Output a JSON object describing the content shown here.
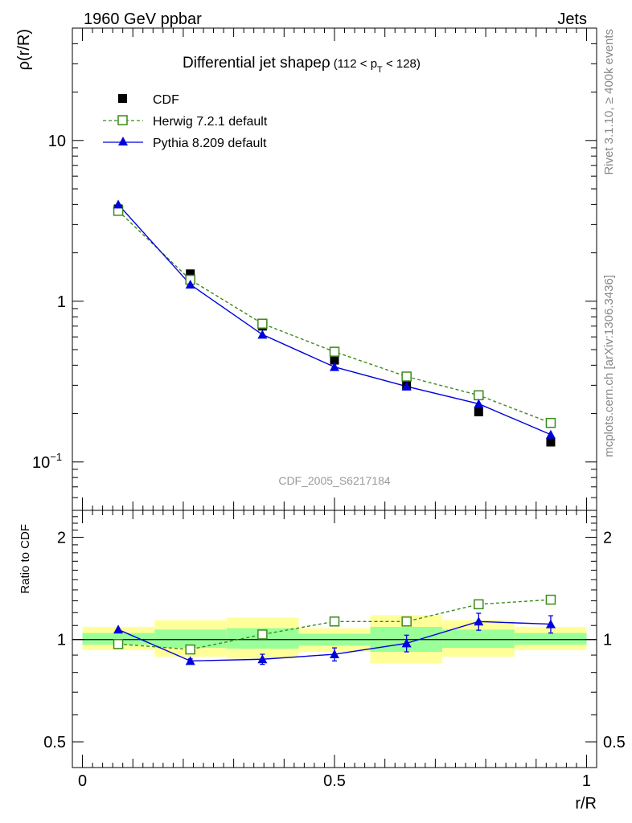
{
  "header": {
    "left": "1960 GeV ppbar",
    "right": "Jets"
  },
  "side_labels": {
    "rivet": "Rivet 3.1.10, ≥ 400k events",
    "mcplots": "mcplots.cern.ch [arXiv:1306.3436]"
  },
  "colors": {
    "cdf": "#000000",
    "herwig": "#3a8a1a",
    "pythia": "#0000dd",
    "band_outer": "#ffff99",
    "band_inner": "#99ff99"
  },
  "chart_data": {
    "type": "line",
    "title": "Differential jet shapeρ",
    "title_suffix": "(112 < p",
    "title_sub": "T",
    "title_end": " < 128)",
    "watermark": "CDF_2005_S6217184",
    "main": {
      "ylabel": "ρ(r/R)",
      "yscale": "log",
      "ylim": [
        0.05,
        50
      ],
      "yticks": [
        {
          "value": 10,
          "label": "10"
        },
        {
          "value": 1,
          "label": "1"
        },
        {
          "value": 0.1,
          "label": "10",
          "sup": "−1"
        }
      ],
      "series": [
        {
          "name": "CDF",
          "marker": "square-filled",
          "x": [
            0.071,
            0.214,
            0.357,
            0.5,
            0.643,
            0.786,
            0.929
          ],
          "y": [
            3.75,
            1.48,
            0.7,
            0.43,
            0.3,
            0.205,
            0.133
          ]
        },
        {
          "name": "Herwig 7.2.1 default",
          "marker": "square-open",
          "x": [
            0.071,
            0.214,
            0.357,
            0.5,
            0.643,
            0.786,
            0.929
          ],
          "y": [
            3.65,
            1.36,
            0.725,
            0.485,
            0.34,
            0.26,
            0.175
          ]
        },
        {
          "name": "Pythia 8.209 default",
          "marker": "triangle",
          "x": [
            0.071,
            0.214,
            0.357,
            0.5,
            0.643,
            0.786,
            0.929
          ],
          "y": [
            4.0,
            1.27,
            0.62,
            0.39,
            0.295,
            0.23,
            0.148
          ]
        }
      ]
    },
    "ratio": {
      "ylabel": "Ratio to CDF",
      "yscale": "log",
      "ylim": [
        0.42,
        2.4
      ],
      "yticks": [
        {
          "value": 2,
          "label": "2"
        },
        {
          "value": 1,
          "label": "1"
        },
        {
          "value": 0.5,
          "label": "0.5"
        }
      ],
      "xlabel": "r/R",
      "xlim": [
        -0.02,
        1.02
      ],
      "xticks": [
        {
          "value": 0,
          "label": "0"
        },
        {
          "value": 0.5,
          "label": "0.5"
        },
        {
          "value": 1,
          "label": "1"
        }
      ],
      "bands": [
        {
          "x0": 0.0,
          "x1": 0.143,
          "outer": [
            0.93,
            1.09
          ],
          "inner": [
            0.965,
            1.045
          ]
        },
        {
          "x0": 0.143,
          "x1": 0.286,
          "outer": [
            0.89,
            1.14
          ],
          "inner": [
            0.945,
            1.07
          ]
        },
        {
          "x0": 0.286,
          "x1": 0.429,
          "outer": [
            0.88,
            1.16
          ],
          "inner": [
            0.94,
            1.08
          ]
        },
        {
          "x0": 0.429,
          "x1": 0.571,
          "outer": [
            0.92,
            1.08
          ],
          "inner": [
            0.96,
            1.04
          ]
        },
        {
          "x0": 0.571,
          "x1": 0.714,
          "outer": [
            0.85,
            1.18
          ],
          "inner": [
            0.92,
            1.09
          ]
        },
        {
          "x0": 0.714,
          "x1": 0.857,
          "outer": [
            0.89,
            1.14
          ],
          "inner": [
            0.945,
            1.07
          ]
        },
        {
          "x0": 0.857,
          "x1": 1.0,
          "outer": [
            0.93,
            1.09
          ],
          "inner": [
            0.965,
            1.045
          ]
        }
      ],
      "series": [
        {
          "name": "Herwig 7.2.1 default",
          "x": [
            0.071,
            0.214,
            0.357,
            0.5,
            0.643,
            0.786,
            0.929
          ],
          "y": [
            0.97,
            0.935,
            1.035,
            1.13,
            1.13,
            1.27,
            1.31
          ]
        },
        {
          "name": "Pythia 8.209 default",
          "x": [
            0.071,
            0.214,
            0.357,
            0.5,
            0.643,
            0.786,
            0.929
          ],
          "y": [
            1.07,
            0.865,
            0.875,
            0.905,
            0.975,
            1.13,
            1.11
          ],
          "err": [
            0,
            0.012,
            0.03,
            0.04,
            0.055,
            0.065,
            0.065
          ]
        }
      ]
    }
  }
}
